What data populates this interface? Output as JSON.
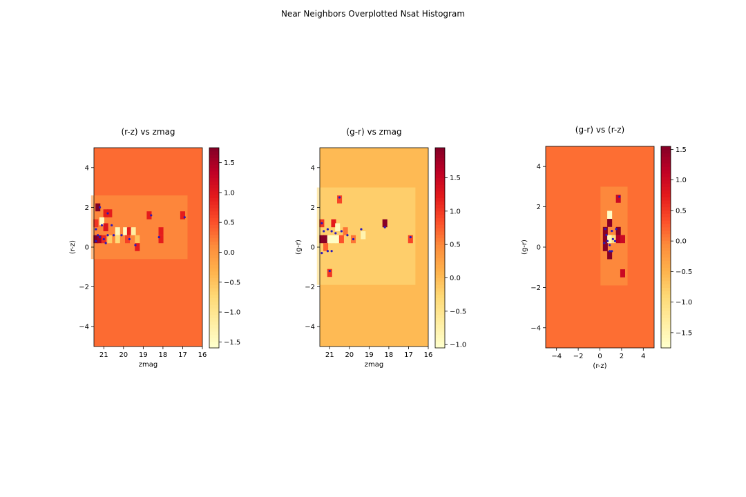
{
  "figure": {
    "suptitle": "Near Neighbors Overplotted Nsat Histogram"
  },
  "chart_data": [
    {
      "type": "heatmap",
      "title": "(r-z) vs zmag",
      "xlabel": "zmag",
      "ylabel": "(r-z)",
      "xlim": [
        21.5,
        16
      ],
      "ylim": [
        -5,
        5
      ],
      "xticks": [
        21,
        20,
        19,
        18,
        17,
        16
      ],
      "yticks": [
        -4,
        -2,
        0,
        2,
        4
      ],
      "colorbar": {
        "range": [
          -1.6,
          1.75
        ],
        "ticks": [
          -1.5,
          -1.0,
          -0.5,
          0.0,
          0.5,
          1.0,
          1.5
        ],
        "cmap": "YlOrRd"
      },
      "background_value": 0.3,
      "cells": [
        {
          "x": 21.3,
          "y": 2.0,
          "v": 1.75
        },
        {
          "x": 20.9,
          "y": 1.7,
          "v": 0.9
        },
        {
          "x": 20.7,
          "y": 1.7,
          "v": 0.9
        },
        {
          "x": 18.7,
          "y": 1.6,
          "v": 0.9
        },
        {
          "x": 17.0,
          "y": 1.6,
          "v": 0.9
        },
        {
          "x": 21.4,
          "y": 1.2,
          "v": 0.7
        },
        {
          "x": 21.1,
          "y": 1.3,
          "v": -1.5
        },
        {
          "x": 20.9,
          "y": 1.0,
          "v": 1.0
        },
        {
          "x": 20.3,
          "y": 0.8,
          "v": -1.4
        },
        {
          "x": 19.9,
          "y": 0.8,
          "v": -1.5
        },
        {
          "x": 19.7,
          "y": 0.8,
          "v": 0.9
        },
        {
          "x": 19.5,
          "y": 0.8,
          "v": -1.2
        },
        {
          "x": 18.1,
          "y": 0.8,
          "v": 0.9
        },
        {
          "x": 21.4,
          "y": 0.4,
          "v": 1.7
        },
        {
          "x": 21.2,
          "y": 0.4,
          "v": 1.5
        },
        {
          "x": 21.0,
          "y": 0.4,
          "v": 0.8
        },
        {
          "x": 20.7,
          "y": 0.4,
          "v": -0.6
        },
        {
          "x": 20.3,
          "y": 0.4,
          "v": -0.8
        },
        {
          "x": 19.8,
          "y": 0.4,
          "v": 0.6
        },
        {
          "x": 19.3,
          "y": 0.4,
          "v": -0.5
        },
        {
          "x": 18.1,
          "y": 0.4,
          "v": 0.9
        },
        {
          "x": 19.3,
          "y": 0.0,
          "v": 0.9
        }
      ],
      "points": [
        {
          "x": 21.2,
          "y": 2.0
        },
        {
          "x": 20.8,
          "y": 1.7
        },
        {
          "x": 18.6,
          "y": 1.6
        },
        {
          "x": 16.9,
          "y": 1.5
        },
        {
          "x": 21.4,
          "y": 0.9
        },
        {
          "x": 21.1,
          "y": 1.1
        },
        {
          "x": 20.6,
          "y": 1.1
        },
        {
          "x": 21.3,
          "y": 0.6
        },
        {
          "x": 21.2,
          "y": 0.5
        },
        {
          "x": 21.0,
          "y": 0.4
        },
        {
          "x": 20.8,
          "y": 0.6
        },
        {
          "x": 21.4,
          "y": 0.3
        },
        {
          "x": 20.5,
          "y": 0.6
        },
        {
          "x": 20.1,
          "y": 0.6
        },
        {
          "x": 19.7,
          "y": 0.4
        },
        {
          "x": 19.4,
          "y": 0.1
        },
        {
          "x": 18.2,
          "y": 0.5
        },
        {
          "x": 20.9,
          "y": 0.2
        }
      ]
    },
    {
      "type": "heatmap",
      "title": "(g-r) vs zmag",
      "xlabel": "zmag",
      "ylabel": "(g-r)",
      "xlim": [
        21.5,
        16
      ],
      "ylim": [
        -5,
        5
      ],
      "xticks": [
        21,
        20,
        19,
        18,
        17,
        16
      ],
      "yticks": [
        -4,
        -2,
        0,
        2,
        4
      ],
      "colorbar": {
        "range": [
          -1.05,
          1.95
        ],
        "ticks": [
          -1.0,
          -0.5,
          0.0,
          0.5,
          1.0,
          1.5
        ],
        "cmap": "YlOrRd"
      },
      "background_value": 0.0,
      "cells": [
        {
          "x": 20.5,
          "y": 2.4,
          "v": 0.9
        },
        {
          "x": 21.4,
          "y": 1.2,
          "v": 1.0
        },
        {
          "x": 20.8,
          "y": 1.2,
          "v": 1.2
        },
        {
          "x": 20.6,
          "y": 1.0,
          "v": -0.9
        },
        {
          "x": 18.2,
          "y": 1.2,
          "v": 1.9
        },
        {
          "x": 21.4,
          "y": 0.4,
          "v": 1.9
        },
        {
          "x": 21.2,
          "y": 0.4,
          "v": 1.9
        },
        {
          "x": 21.0,
          "y": 0.4,
          "v": -1.0
        },
        {
          "x": 20.8,
          "y": 0.4,
          "v": -1.0
        },
        {
          "x": 20.6,
          "y": 0.4,
          "v": -1.0
        },
        {
          "x": 20.4,
          "y": 0.4,
          "v": 0.8
        },
        {
          "x": 20.2,
          "y": 0.8,
          "v": 0.6
        },
        {
          "x": 19.8,
          "y": 0.4,
          "v": 0.6
        },
        {
          "x": 19.3,
          "y": 0.6,
          "v": -0.8
        },
        {
          "x": 16.9,
          "y": 0.4,
          "v": 0.9
        },
        {
          "x": 21.2,
          "y": 0.0,
          "v": 0.7
        },
        {
          "x": 21.0,
          "y": -1.3,
          "v": 1.0
        }
      ],
      "points": [
        {
          "x": 20.5,
          "y": 2.5
        },
        {
          "x": 21.4,
          "y": 1.2
        },
        {
          "x": 21.3,
          "y": 0.8
        },
        {
          "x": 21.1,
          "y": 0.9
        },
        {
          "x": 20.9,
          "y": 0.8
        },
        {
          "x": 20.7,
          "y": 0.7
        },
        {
          "x": 20.4,
          "y": 0.8
        },
        {
          "x": 20.1,
          "y": 0.6
        },
        {
          "x": 19.8,
          "y": 0.4
        },
        {
          "x": 19.4,
          "y": 0.9
        },
        {
          "x": 18.2,
          "y": 1.0
        },
        {
          "x": 16.9,
          "y": 0.5
        },
        {
          "x": 21.4,
          "y": -0.3
        },
        {
          "x": 21.1,
          "y": -0.2
        },
        {
          "x": 20.9,
          "y": -0.2
        },
        {
          "x": 21.0,
          "y": -1.2
        }
      ]
    },
    {
      "type": "heatmap",
      "title": "(g-r) vs (r-z)",
      "xlabel": "(r-z)",
      "ylabel": "(g-r)",
      "xlim": [
        -5,
        5
      ],
      "ylim": [
        -5,
        5
      ],
      "xticks": [
        -4,
        -2,
        0,
        2,
        4
      ],
      "yticks": [
        -4,
        -2,
        0,
        2,
        4
      ],
      "colorbar": {
        "range": [
          -1.75,
          1.55
        ],
        "ticks": [
          -1.5,
          -1.0,
          -0.5,
          0.0,
          0.5,
          1.0,
          1.5
        ],
        "cmap": "YlOrRd"
      },
      "background_value": 0.1,
      "cells": [
        {
          "x": 1.7,
          "y": 2.4,
          "v": 1.0
        },
        {
          "x": 0.9,
          "y": 1.6,
          "v": -1.7
        },
        {
          "x": 0.9,
          "y": 1.2,
          "v": 1.5
        },
        {
          "x": 0.5,
          "y": 0.8,
          "v": 1.5
        },
        {
          "x": 1.7,
          "y": 0.8,
          "v": 1.5
        },
        {
          "x": 0.5,
          "y": 0.4,
          "v": 1.5
        },
        {
          "x": 0.9,
          "y": 0.4,
          "v": -1.6
        },
        {
          "x": 1.3,
          "y": 0.4,
          "v": -1.0
        },
        {
          "x": 1.7,
          "y": 0.4,
          "v": 1.2
        },
        {
          "x": 2.1,
          "y": 0.4,
          "v": 1.0
        },
        {
          "x": 0.5,
          "y": 0.0,
          "v": 1.5
        },
        {
          "x": 0.9,
          "y": -0.4,
          "v": 1.5
        },
        {
          "x": 2.1,
          "y": -1.3,
          "v": 1.0
        }
      ],
      "points": [
        {
          "x": 1.8,
          "y": 2.5
        },
        {
          "x": 0.5,
          "y": 0.9
        },
        {
          "x": 0.6,
          "y": 0.6
        },
        {
          "x": 0.7,
          "y": 0.3
        },
        {
          "x": 0.4,
          "y": 0.2
        },
        {
          "x": 0.9,
          "y": 0.1
        },
        {
          "x": 1.1,
          "y": 0.8
        },
        {
          "x": 1.2,
          "y": 0.4
        },
        {
          "x": 1.4,
          "y": 0.3
        },
        {
          "x": 1.5,
          "y": 0.9
        },
        {
          "x": 0.9,
          "y": -0.2
        },
        {
          "x": 1.1,
          "y": -0.2
        }
      ]
    }
  ]
}
